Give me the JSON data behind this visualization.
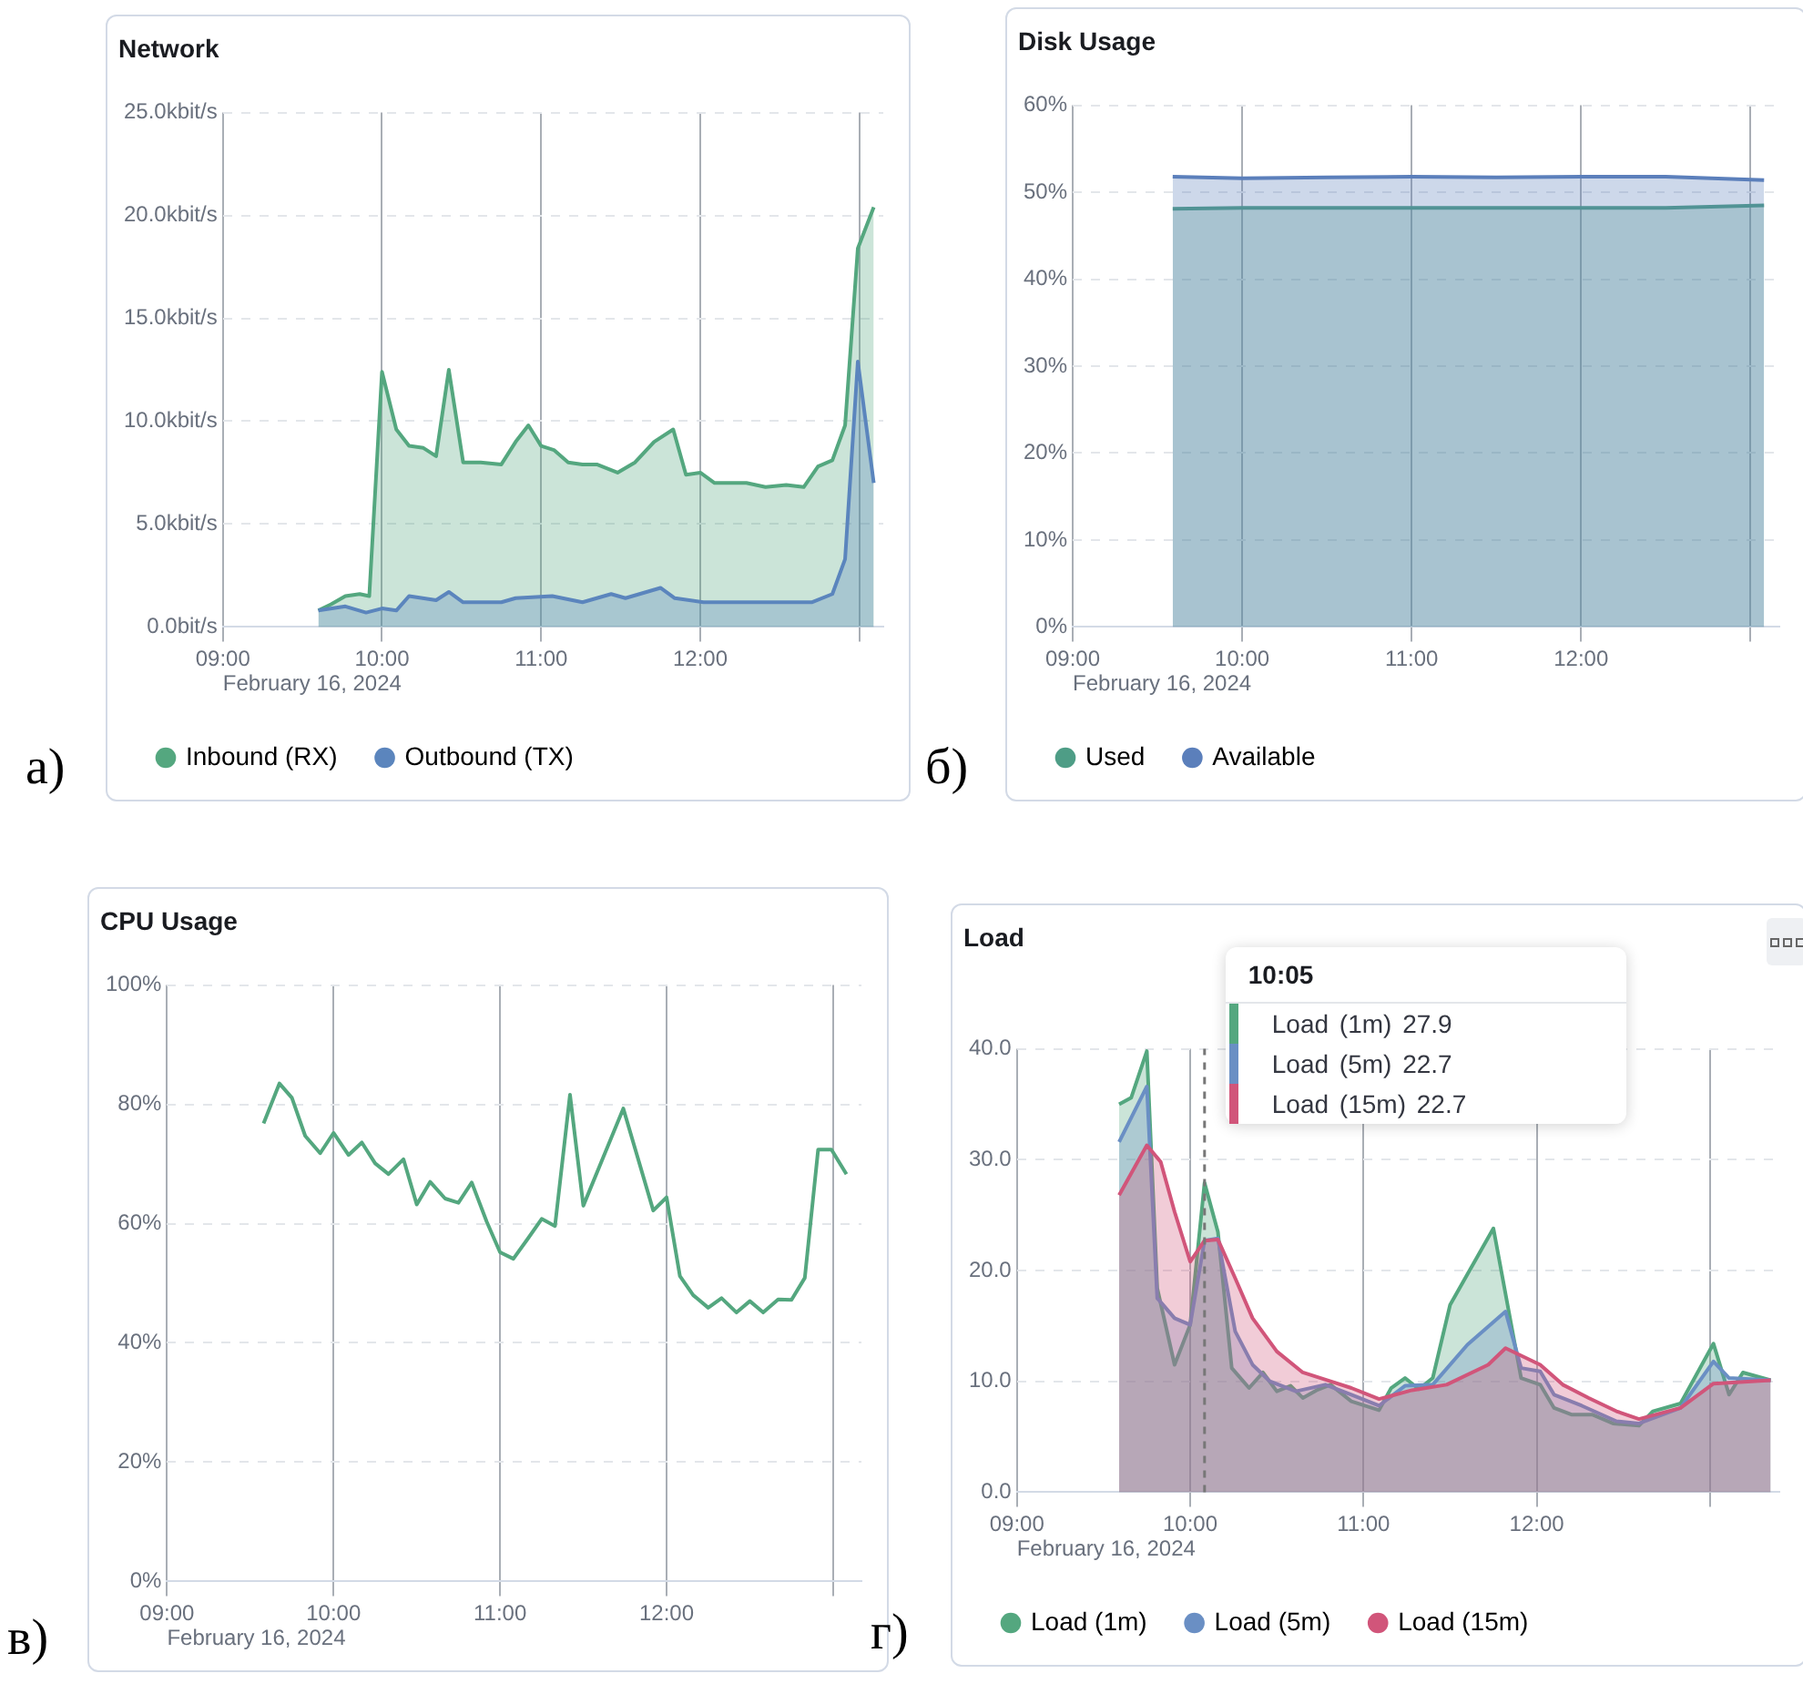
{
  "chart_data": [
    {
      "type": "area",
      "title": "Network",
      "xlabel": "February 16, 2024",
      "annotations": [
        "а)"
      ],
      "legend": "bottom",
      "grid": true,
      "marker": "none",
      "xlim": [
        9,
        13.15
      ],
      "xticks": [
        {
          "value": 9,
          "label": "09:00"
        },
        {
          "value": 10,
          "label": "10:00"
        },
        {
          "value": 11,
          "label": "11:00"
        },
        {
          "value": 12,
          "label": "12:00"
        },
        {
          "value": 13,
          "label": null
        }
      ],
      "ylim": [
        0,
        25
      ],
      "yticks": [
        {
          "value": 0,
          "label": "0.0bit/s"
        },
        {
          "value": 5,
          "label": "5.0kbit/s"
        },
        {
          "value": 10,
          "label": "10.0kbit/s"
        },
        {
          "value": 15,
          "label": "15.0kbit/s"
        },
        {
          "value": 20,
          "label": "20.0kbit/s"
        },
        {
          "value": 25,
          "label": "25.0kbit/s"
        }
      ],
      "series": [
        {
          "name": "Inbound (RX)",
          "color": "#54a77f",
          "x": [
            9.6,
            9.68,
            9.77,
            9.86,
            9.92,
            10.0,
            10.09,
            10.17,
            10.26,
            10.34,
            10.42,
            10.51,
            10.62,
            10.75,
            10.84,
            10.92,
            11.0,
            11.08,
            11.17,
            11.26,
            11.35,
            11.48,
            11.59,
            11.71,
            11.83,
            11.91,
            12.0,
            12.09,
            12.2,
            12.29,
            12.41,
            12.54,
            12.65,
            12.74,
            12.83,
            12.91,
            12.99,
            13.09
          ],
          "values": [
            0.8,
            1.1,
            1.5,
            1.6,
            1.5,
            12.4,
            9.6,
            8.8,
            8.7,
            8.3,
            12.5,
            8.0,
            8.0,
            7.9,
            9.0,
            9.8,
            8.8,
            8.6,
            8.0,
            7.9,
            7.9,
            7.5,
            8.0,
            9.0,
            9.6,
            7.4,
            7.5,
            7.0,
            7.0,
            7.0,
            6.8,
            6.9,
            6.8,
            7.8,
            8.1,
            9.8,
            18.4,
            20.4
          ]
        },
        {
          "name": "Outbound (TX)",
          "color": "#5b85bd",
          "x": [
            9.6,
            9.77,
            9.9,
            10.0,
            10.09,
            10.17,
            10.34,
            10.42,
            10.51,
            10.75,
            10.84,
            11.07,
            11.26,
            11.44,
            11.53,
            11.75,
            11.84,
            12.02,
            12.47,
            12.7,
            12.83,
            12.91,
            12.99,
            13.09
          ],
          "values": [
            0.8,
            1.0,
            0.7,
            0.9,
            0.8,
            1.5,
            1.3,
            1.7,
            1.2,
            1.2,
            1.4,
            1.5,
            1.2,
            1.6,
            1.4,
            1.9,
            1.4,
            1.2,
            1.2,
            1.2,
            1.6,
            3.3,
            12.9,
            7.0
          ]
        }
      ]
    },
    {
      "type": "area",
      "title": "Disk Usage",
      "xlabel": "February 16, 2024",
      "annotations": [
        "б)"
      ],
      "legend": "bottom",
      "grid": true,
      "marker": "none",
      "xlim": [
        9,
        13.17
      ],
      "xticks": [
        {
          "value": 9,
          "label": "09:00"
        },
        {
          "value": 10,
          "label": "10:00"
        },
        {
          "value": 11,
          "label": "11:00"
        },
        {
          "value": 12,
          "label": "12:00"
        },
        {
          "value": 13,
          "label": null
        }
      ],
      "ylim": [
        0,
        60
      ],
      "yticks": [
        {
          "value": 0,
          "label": "0%"
        },
        {
          "value": 10,
          "label": "10%"
        },
        {
          "value": 20,
          "label": "20%"
        },
        {
          "value": 30,
          "label": "30%"
        },
        {
          "value": 40,
          "label": "40%"
        },
        {
          "value": 50,
          "label": "50%"
        },
        {
          "value": 60,
          "label": "60%"
        }
      ],
      "series": [
        {
          "name": "Used",
          "color": "#4e9d86",
          "x": [
            9.59,
            10,
            10.5,
            11,
            11.5,
            12,
            12.5,
            13.08
          ],
          "values": [
            48.1,
            48.2,
            48.2,
            48.2,
            48.2,
            48.2,
            48.2,
            48.5
          ]
        },
        {
          "name": "Available",
          "color": "#5b7fbb",
          "x": [
            9.59,
            10,
            10.5,
            11,
            11.5,
            12,
            12.5,
            13.08
          ],
          "values": [
            51.8,
            51.6,
            51.7,
            51.8,
            51.7,
            51.8,
            51.8,
            51.4
          ]
        }
      ]
    },
    {
      "type": "line",
      "title": "CPU Usage",
      "xlabel": "February 16, 2024",
      "annotations": [
        "в)"
      ],
      "grid": true,
      "marker": "none",
      "xlim": [
        9,
        13.17
      ],
      "xticks": [
        {
          "value": 9,
          "label": "09:00"
        },
        {
          "value": 10,
          "label": "10:00"
        },
        {
          "value": 11,
          "label": "11:00"
        },
        {
          "value": 12,
          "label": "12:00"
        },
        {
          "value": 13,
          "label": null
        }
      ],
      "ylim": [
        0,
        100
      ],
      "yticks": [
        {
          "value": 0,
          "label": "0%"
        },
        {
          "value": 20,
          "label": "20%"
        },
        {
          "value": 40,
          "label": "40%"
        },
        {
          "value": 60,
          "label": "60%"
        },
        {
          "value": 80,
          "label": "80%"
        },
        {
          "value": 100,
          "label": "100%"
        }
      ],
      "series": [
        {
          "color": "#54a77f",
          "x": [
            9.58,
            9.675,
            9.75,
            9.83,
            9.92,
            10.0,
            10.09,
            10.17,
            10.25,
            10.33,
            10.42,
            10.5,
            10.58,
            10.67,
            10.75,
            10.83,
            10.92,
            11.0,
            11.08,
            11.17,
            11.25,
            11.33,
            11.42,
            11.5,
            11.74,
            11.92,
            12.0,
            12.08,
            12.16,
            12.25,
            12.33,
            12.42,
            12.5,
            12.58,
            12.67,
            12.75,
            12.83,
            12.91,
            12.99,
            13.08
          ],
          "values": [
            76.8,
            83.5,
            81.1,
            74.7,
            71.8,
            75.2,
            71.5,
            73.6,
            70.1,
            68.3,
            70.8,
            63.2,
            67.0,
            64.2,
            63.5,
            66.9,
            60.3,
            55.2,
            54.1,
            57.6,
            60.8,
            59.6,
            81.6,
            63.0,
            79.3,
            62.2,
            64.4,
            51.2,
            48.0,
            45.9,
            47.5,
            45.1,
            47.0,
            45.1,
            47.3,
            47.2,
            50.9,
            72.4,
            72.4,
            68.3
          ]
        }
      ]
    },
    {
      "type": "area",
      "title": "Load",
      "xlabel": "February 16, 2024",
      "annotations": [
        "г)",
        "10:05",
        "Load (1m) 27.9",
        "Load (5m) 22.7",
        "Load (15m) 22.7"
      ],
      "legend": "bottom",
      "grid": true,
      "marker": "none",
      "xlim": [
        9,
        13.4
      ],
      "xticks": [
        {
          "value": 9,
          "label": "09:00"
        },
        {
          "value": 10,
          "label": "10:00"
        },
        {
          "value": 11,
          "label": "11:00"
        },
        {
          "value": 12,
          "label": "12:00"
        },
        {
          "value": 13,
          "label": null
        }
      ],
      "ylim": [
        0,
        40
      ],
      "yticks": [
        {
          "value": 0,
          "label": "0.0"
        },
        {
          "value": 10,
          "label": "10.0"
        },
        {
          "value": 20,
          "label": "20.0"
        },
        {
          "value": 30,
          "label": "30.0"
        },
        {
          "value": 40,
          "label": "40.0"
        }
      ],
      "ref_lines": [
        {
          "axis": "x",
          "value": 10.083,
          "line_style": "dashed",
          "color": "#777777"
        }
      ],
      "series": [
        {
          "name": "Load (1m)",
          "color": "#54a77f",
          "x": [
            9.59,
            9.66,
            9.75,
            9.81,
            9.91,
            10.0,
            10.083,
            10.16,
            10.24,
            10.34,
            10.42,
            10.5,
            10.58,
            10.65,
            10.73,
            10.81,
            10.93,
            11.09,
            11.16,
            11.24,
            11.32,
            11.4,
            11.5,
            11.75,
            11.91,
            12.02,
            12.1,
            12.2,
            12.32,
            12.44,
            12.59,
            12.67,
            12.83,
            13.02,
            13.11,
            13.19,
            13.35
          ],
          "values": [
            35.0,
            35.6,
            39.8,
            18.4,
            11.5,
            15.1,
            27.9,
            23.5,
            11.2,
            9.4,
            10.8,
            9.1,
            9.6,
            8.5,
            9.2,
            9.7,
            8.2,
            7.4,
            9.4,
            10.3,
            9.3,
            10.3,
            16.9,
            23.8,
            10.3,
            9.7,
            7.6,
            7.0,
            7.0,
            6.2,
            6.0,
            7.3,
            8.0,
            13.4,
            8.8,
            10.8,
            10.1
          ]
        },
        {
          "name": "Load (5m)",
          "color": "#6a8fc4",
          "x": [
            9.59,
            9.75,
            9.81,
            9.91,
            10.0,
            10.083,
            10.16,
            10.26,
            10.36,
            10.46,
            10.61,
            10.78,
            10.93,
            11.09,
            11.24,
            11.4,
            11.6,
            11.82,
            11.91,
            12.02,
            12.1,
            12.26,
            12.46,
            12.59,
            12.83,
            13.02,
            13.11,
            13.35
          ],
          "values": [
            31.6,
            36.6,
            17.5,
            15.7,
            15.1,
            22.7,
            22.9,
            14.5,
            11.5,
            10.0,
            9.1,
            9.7,
            8.8,
            7.8,
            9.6,
            9.7,
            13.3,
            16.3,
            11.2,
            10.9,
            8.8,
            7.8,
            6.4,
            6.2,
            7.6,
            11.8,
            10.3,
            10.1
          ]
        },
        {
          "name": "Load (15m)",
          "color": "#d1557a",
          "x": [
            9.59,
            9.75,
            9.83,
            9.91,
            10.0,
            10.083,
            10.16,
            10.26,
            10.36,
            10.5,
            10.65,
            10.81,
            10.93,
            11.09,
            11.28,
            11.48,
            11.72,
            11.82,
            12.02,
            12.15,
            12.3,
            12.46,
            12.59,
            12.83,
            13.02,
            13.35
          ],
          "values": [
            26.8,
            31.3,
            29.8,
            25.3,
            20.8,
            22.7,
            22.8,
            19.3,
            15.7,
            12.7,
            10.8,
            10.0,
            9.4,
            8.4,
            9.2,
            9.7,
            11.5,
            13.0,
            11.5,
            9.7,
            8.5,
            7.3,
            6.6,
            7.6,
            9.8,
            10.1
          ]
        }
      ]
    }
  ]
}
